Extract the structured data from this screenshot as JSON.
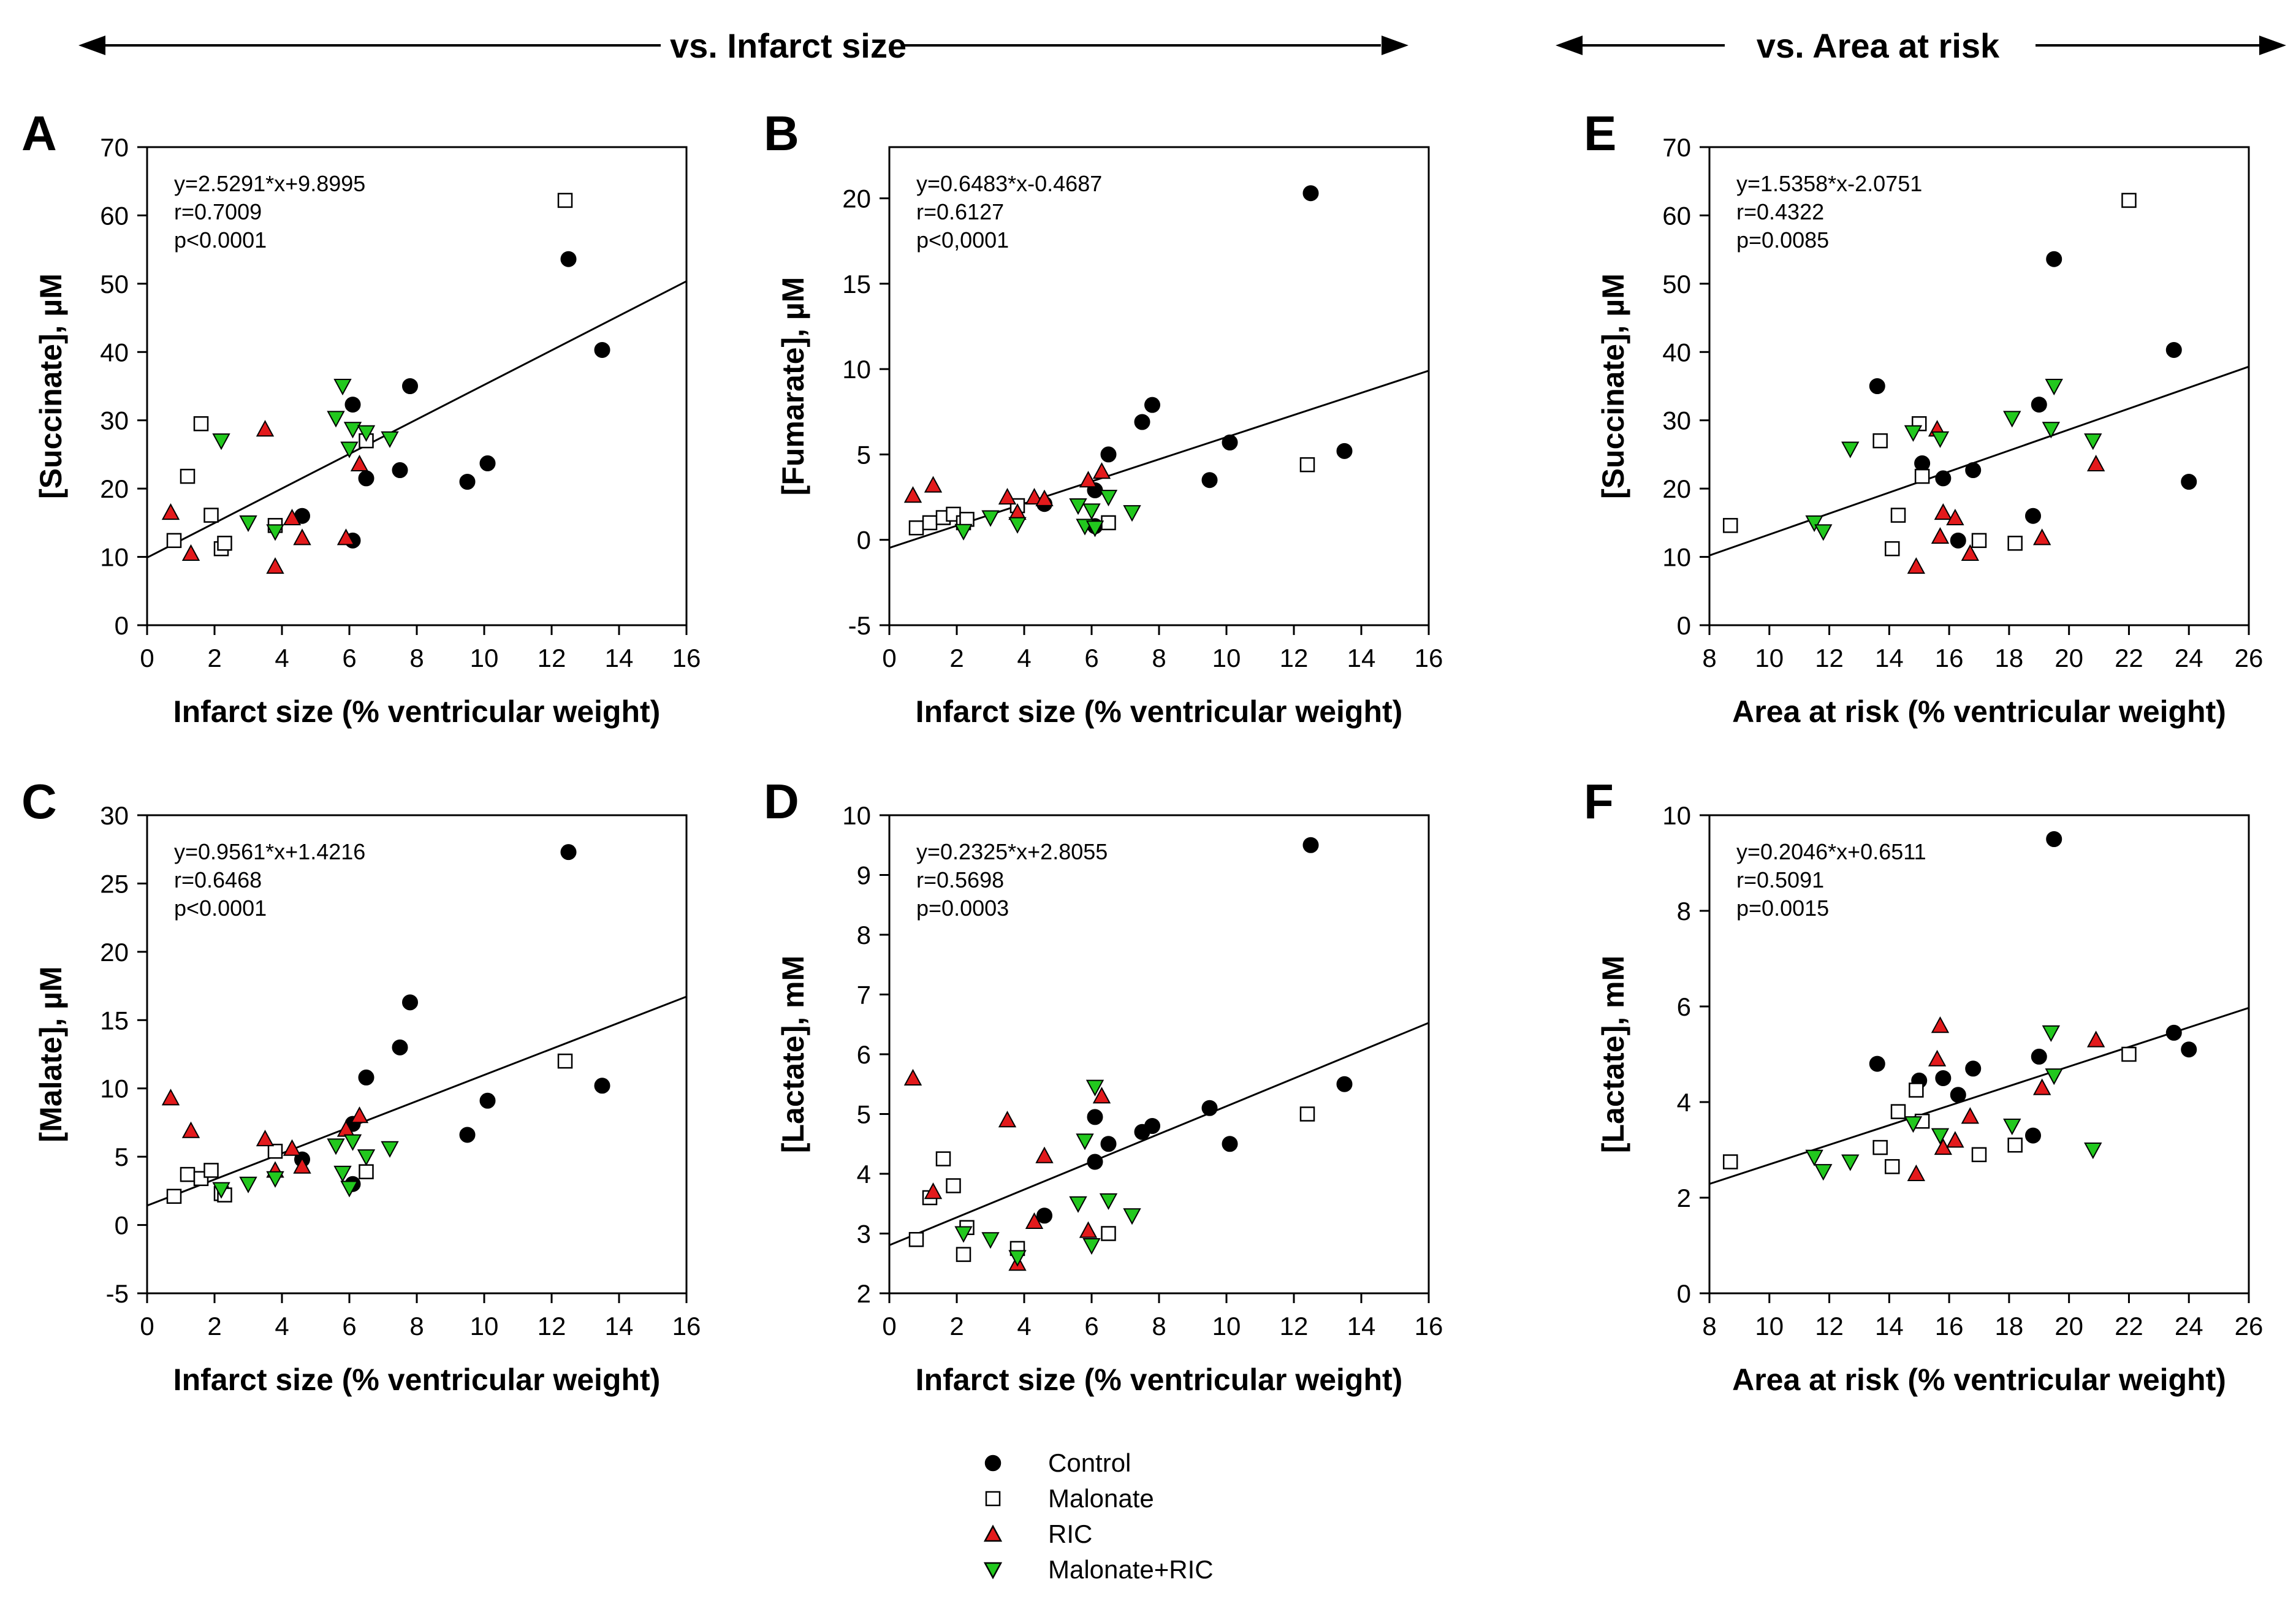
{
  "headers": {
    "left": "vs. Infarct size",
    "right": "vs. Area at risk"
  },
  "legend": [
    {
      "label": "Control",
      "group": "control"
    },
    {
      "label": "Malonate",
      "group": "malonate"
    },
    {
      "label": "RIC",
      "group": "ric"
    },
    {
      "label": "Malonate+RIC",
      "group": "malric"
    }
  ],
  "colors": {
    "control": "#000000",
    "malonate_fill": "#ffffff",
    "ric": "#e31a1c",
    "malric": "#22c81e"
  },
  "chart_data": [
    {
      "id": "A",
      "type": "scatter",
      "panel_letter": "A",
      "ylabel": "[Succinate], µM",
      "xlabel": "Infarct size (% ventricular weight)",
      "xlim": [
        0,
        16
      ],
      "ylim": [
        0,
        70
      ],
      "xticks": [
        0,
        2,
        4,
        6,
        8,
        10,
        12,
        14,
        16
      ],
      "yticks": [
        0,
        10,
        20,
        30,
        40,
        50,
        60,
        70
      ],
      "ytick_labels": [
        "0",
        "10",
        "20",
        "30",
        "40",
        "50",
        "60",
        "70"
      ],
      "regression": {
        "slope": 2.5291,
        "intercept": 9.8995
      },
      "stats": [
        "y=2.5291*x+9.8995",
        "r=0.7009",
        "p<0.0001"
      ],
      "series": {
        "control": [
          [
            4.6,
            16.0
          ],
          [
            6.1,
            32.3
          ],
          [
            6.1,
            12.4
          ],
          [
            6.5,
            21.5
          ],
          [
            7.5,
            22.7
          ],
          [
            7.8,
            35.0
          ],
          [
            9.5,
            21.0
          ],
          [
            10.1,
            23.7
          ],
          [
            12.5,
            53.6
          ],
          [
            13.5,
            40.3
          ]
        ],
        "malonate": [
          [
            0.8,
            12.4
          ],
          [
            1.2,
            21.8
          ],
          [
            1.6,
            29.5
          ],
          [
            1.9,
            16.1
          ],
          [
            2.2,
            11.2
          ],
          [
            2.3,
            12.0
          ],
          [
            3.8,
            14.6
          ],
          [
            6.5,
            27.0
          ],
          [
            12.4,
            62.2
          ]
        ],
        "ric": [
          [
            0.7,
            16.5
          ],
          [
            1.3,
            10.5
          ],
          [
            3.5,
            28.7
          ],
          [
            3.8,
            8.6
          ],
          [
            4.3,
            15.7
          ],
          [
            4.6,
            12.8
          ],
          [
            5.9,
            12.8
          ],
          [
            6.3,
            23.6
          ]
        ],
        "malric": [
          [
            2.2,
            27.0
          ],
          [
            3.0,
            15.0
          ],
          [
            3.8,
            13.7
          ],
          [
            5.6,
            30.3
          ],
          [
            5.8,
            35.0
          ],
          [
            6.0,
            25.8
          ],
          [
            6.1,
            28.7
          ],
          [
            6.5,
            28.2
          ],
          [
            7.2,
            27.3
          ]
        ]
      }
    },
    {
      "id": "B",
      "type": "scatter",
      "panel_letter": "B",
      "ylabel": "[Fumarate], µM",
      "xlabel": "Infarct size (% ventricular weight)",
      "xlim": [
        0,
        16
      ],
      "ylim": [
        -5,
        23
      ],
      "xticks": [
        0,
        2,
        4,
        6,
        8,
        10,
        12,
        14,
        16
      ],
      "yticks": [
        -5,
        0,
        5,
        10,
        15,
        20
      ],
      "ytick_labels": [
        "-5",
        "0",
        "5",
        "10",
        "15",
        "20"
      ],
      "regression": {
        "slope": 0.6483,
        "intercept": -0.4687
      },
      "stats": [
        "y=0.6483*x-0.4687",
        "r=0.6127",
        "p<0,0001"
      ],
      "series": {
        "control": [
          [
            4.6,
            2.1
          ],
          [
            6.1,
            2.9
          ],
          [
            6.1,
            0.8
          ],
          [
            6.5,
            5.0
          ],
          [
            7.5,
            6.9
          ],
          [
            7.8,
            7.9
          ],
          [
            9.5,
            3.5
          ],
          [
            10.1,
            5.7
          ],
          [
            12.5,
            20.3
          ],
          [
            13.5,
            5.2
          ]
        ],
        "malonate": [
          [
            0.8,
            0.7
          ],
          [
            1.2,
            1.0
          ],
          [
            1.6,
            1.3
          ],
          [
            1.9,
            1.5
          ],
          [
            2.2,
            1.0
          ],
          [
            2.3,
            1.2
          ],
          [
            3.8,
            2.0
          ],
          [
            6.5,
            1.0
          ],
          [
            12.4,
            4.4
          ]
        ],
        "ric": [
          [
            0.7,
            2.6
          ],
          [
            1.3,
            3.2
          ],
          [
            3.5,
            2.5
          ],
          [
            3.8,
            1.6
          ],
          [
            4.3,
            2.5
          ],
          [
            4.6,
            2.4
          ],
          [
            5.9,
            3.5
          ],
          [
            6.3,
            4.0
          ]
        ],
        "malric": [
          [
            2.2,
            0.5
          ],
          [
            3.0,
            1.3
          ],
          [
            3.8,
            0.9
          ],
          [
            5.6,
            2.0
          ],
          [
            5.8,
            0.8
          ],
          [
            6.0,
            1.7
          ],
          [
            6.1,
            0.7
          ],
          [
            6.5,
            2.5
          ],
          [
            7.2,
            1.6
          ]
        ]
      }
    },
    {
      "id": "C",
      "type": "scatter",
      "panel_letter": "C",
      "ylabel": "[Malate], µM",
      "xlabel": "Infarct size (% ventricular weight)",
      "xlim": [
        0,
        16
      ],
      "ylim": [
        -5,
        30
      ],
      "xticks": [
        0,
        2,
        4,
        6,
        8,
        10,
        12,
        14,
        16
      ],
      "yticks": [
        -5,
        0,
        5,
        10,
        15,
        20,
        25,
        30
      ],
      "ytick_labels": [
        "-5",
        "0",
        "5",
        "10",
        "15",
        "20",
        "25",
        "30"
      ],
      "regression": {
        "slope": 0.9561,
        "intercept": 1.4216
      },
      "stats": [
        "y=0.9561*x+1.4216",
        "r=0.6468",
        "p<0.0001"
      ],
      "series": {
        "control": [
          [
            4.6,
            4.8
          ],
          [
            6.1,
            7.4
          ],
          [
            6.1,
            3.0
          ],
          [
            6.5,
            10.8
          ],
          [
            7.5,
            13.0
          ],
          [
            7.8,
            16.3
          ],
          [
            9.5,
            6.6
          ],
          [
            10.1,
            9.1
          ],
          [
            12.5,
            27.3
          ],
          [
            13.5,
            10.2
          ]
        ],
        "malonate": [
          [
            0.8,
            2.1
          ],
          [
            1.2,
            3.7
          ],
          [
            1.6,
            3.4
          ],
          [
            1.9,
            4.0
          ],
          [
            2.2,
            2.3
          ],
          [
            2.3,
            2.2
          ],
          [
            3.8,
            5.4
          ],
          [
            6.5,
            3.9
          ],
          [
            12.4,
            12.0
          ]
        ],
        "ric": [
          [
            0.7,
            9.3
          ],
          [
            1.3,
            6.9
          ],
          [
            3.5,
            6.3
          ],
          [
            3.8,
            4.0
          ],
          [
            4.3,
            5.6
          ],
          [
            4.6,
            4.3
          ],
          [
            5.9,
            7.0
          ],
          [
            6.3,
            8.0
          ]
        ],
        "malric": [
          [
            2.2,
            2.6
          ],
          [
            3.0,
            3.0
          ],
          [
            3.8,
            3.4
          ],
          [
            5.6,
            5.8
          ],
          [
            5.8,
            3.8
          ],
          [
            6.0,
            2.7
          ],
          [
            6.1,
            6.1
          ],
          [
            6.5,
            5.0
          ],
          [
            7.2,
            5.6
          ]
        ]
      }
    },
    {
      "id": "D",
      "type": "scatter",
      "panel_letter": "D",
      "ylabel": "[Lactate], mM",
      "xlabel": "Infarct size (% ventricular weight)",
      "xlim": [
        0,
        16
      ],
      "ylim": [
        2,
        10
      ],
      "xticks": [
        0,
        2,
        4,
        6,
        8,
        10,
        12,
        14,
        16
      ],
      "yticks": [
        2,
        3,
        4,
        5,
        6,
        7,
        8,
        9,
        10
      ],
      "ytick_labels": [
        "2",
        "3",
        "4",
        "5",
        "6",
        "7",
        "8",
        "9",
        "10"
      ],
      "regression": {
        "slope": 0.2325,
        "intercept": 2.8055
      },
      "stats": [
        "y=0.2325*x+2.8055",
        "r=0.5698",
        "p=0.0003"
      ],
      "series": {
        "control": [
          [
            4.6,
            3.3
          ],
          [
            6.1,
            4.2
          ],
          [
            6.1,
            4.95
          ],
          [
            6.5,
            4.5
          ],
          [
            7.5,
            4.7
          ],
          [
            7.8,
            4.8
          ],
          [
            9.5,
            5.1
          ],
          [
            10.1,
            4.5
          ],
          [
            12.5,
            9.5
          ],
          [
            13.5,
            5.5
          ]
        ],
        "malonate": [
          [
            0.8,
            2.9
          ],
          [
            1.2,
            3.6
          ],
          [
            1.6,
            4.25
          ],
          [
            1.9,
            3.8
          ],
          [
            2.2,
            2.65
          ],
          [
            2.3,
            3.1
          ],
          [
            3.8,
            2.75
          ],
          [
            6.5,
            3.0
          ],
          [
            12.4,
            5.0
          ]
        ],
        "ric": [
          [
            0.7,
            5.6
          ],
          [
            1.3,
            3.7
          ],
          [
            3.5,
            4.9
          ],
          [
            3.8,
            2.5
          ],
          [
            4.3,
            3.2
          ],
          [
            4.6,
            4.3
          ],
          [
            5.9,
            3.05
          ],
          [
            6.3,
            5.3
          ]
        ],
        "malric": [
          [
            2.2,
            3.0
          ],
          [
            3.0,
            2.9
          ],
          [
            3.8,
            2.6
          ],
          [
            5.6,
            3.5
          ],
          [
            5.8,
            4.55
          ],
          [
            6.0,
            2.8
          ],
          [
            6.1,
            5.45
          ],
          [
            6.5,
            3.55
          ],
          [
            7.2,
            3.3
          ]
        ]
      }
    },
    {
      "id": "E",
      "type": "scatter",
      "panel_letter": "E",
      "ylabel": "[Succinate], µM",
      "xlabel": "Area at risk (% ventricular weight)",
      "xlim": [
        8,
        26
      ],
      "ylim": [
        0,
        70
      ],
      "xticks": [
        8,
        10,
        12,
        14,
        16,
        18,
        20,
        22,
        24,
        26
      ],
      "yticks": [
        0,
        10,
        20,
        30,
        40,
        50,
        60,
        70
      ],
      "ytick_labels": [
        "0",
        "10",
        "20",
        "30",
        "40",
        "50",
        "60",
        "70"
      ],
      "regression": {
        "slope": 1.5358,
        "intercept": -2.0751
      },
      "stats": [
        "y=1.5358*x-2.0751",
        "r=0.4322",
        "p=0.0085"
      ],
      "series": {
        "control": [
          [
            13.6,
            35.0
          ],
          [
            15.1,
            23.7
          ],
          [
            15.8,
            21.5
          ],
          [
            16.3,
            12.4
          ],
          [
            16.8,
            22.7
          ],
          [
            18.8,
            16.0
          ],
          [
            19.0,
            32.3
          ],
          [
            19.5,
            53.6
          ],
          [
            23.5,
            40.3
          ],
          [
            24.0,
            21.0
          ]
        ],
        "malonate": [
          [
            8.7,
            14.6
          ],
          [
            13.7,
            27.0
          ],
          [
            14.1,
            11.2
          ],
          [
            14.3,
            16.1
          ],
          [
            15.0,
            29.5
          ],
          [
            15.1,
            21.8
          ],
          [
            17.0,
            12.4
          ],
          [
            18.2,
            12.0
          ],
          [
            22.0,
            62.2
          ]
        ],
        "ric": [
          [
            14.9,
            8.6
          ],
          [
            15.6,
            28.7
          ],
          [
            15.7,
            13.0
          ],
          [
            15.8,
            16.5
          ],
          [
            16.2,
            15.7
          ],
          [
            16.7,
            10.5
          ],
          [
            19.1,
            12.8
          ],
          [
            20.9,
            23.6
          ]
        ],
        "malric": [
          [
            11.5,
            15.0
          ],
          [
            11.8,
            13.7
          ],
          [
            12.7,
            25.8
          ],
          [
            14.8,
            28.2
          ],
          [
            15.7,
            27.3
          ],
          [
            18.1,
            30.3
          ],
          [
            19.4,
            28.7
          ],
          [
            19.5,
            35.0
          ],
          [
            20.8,
            27.0
          ]
        ]
      }
    },
    {
      "id": "F",
      "type": "scatter",
      "panel_letter": "F",
      "ylabel": "[Lactate], mM",
      "xlabel": "Area at risk (% ventricular weight)",
      "xlim": [
        8,
        26
      ],
      "ylim": [
        0,
        10
      ],
      "xticks": [
        8,
        10,
        12,
        14,
        16,
        18,
        20,
        22,
        24,
        26
      ],
      "yticks": [
        0,
        2,
        4,
        6,
        8,
        10
      ],
      "ytick_labels": [
        "0",
        "2",
        "4",
        "6",
        "8",
        "10"
      ],
      "regression": {
        "slope": 0.2046,
        "intercept": 0.6511
      },
      "stats": [
        "y=0.2046*x+0.6511",
        "r=0.5091",
        "p=0.0015"
      ],
      "series": {
        "control": [
          [
            13.6,
            4.8
          ],
          [
            15.0,
            4.45
          ],
          [
            15.8,
            4.5
          ],
          [
            16.3,
            4.15
          ],
          [
            16.8,
            4.7
          ],
          [
            18.8,
            3.3
          ],
          [
            19.0,
            4.95
          ],
          [
            19.5,
            9.5
          ],
          [
            23.5,
            5.45
          ],
          [
            24.0,
            5.1
          ]
        ],
        "malonate": [
          [
            8.7,
            2.75
          ],
          [
            13.7,
            3.05
          ],
          [
            14.1,
            2.65
          ],
          [
            14.3,
            3.8
          ],
          [
            14.9,
            4.25
          ],
          [
            15.1,
            3.6
          ],
          [
            17.0,
            2.9
          ],
          [
            18.2,
            3.1
          ],
          [
            22.0,
            5.0
          ]
        ],
        "ric": [
          [
            14.9,
            2.5
          ],
          [
            15.6,
            4.9
          ],
          [
            15.7,
            5.6
          ],
          [
            15.8,
            3.05
          ],
          [
            16.2,
            3.2
          ],
          [
            16.7,
            3.7
          ],
          [
            19.1,
            4.3
          ],
          [
            20.9,
            5.3
          ]
        ],
        "malric": [
          [
            11.5,
            2.85
          ],
          [
            11.8,
            2.55
          ],
          [
            12.7,
            2.75
          ],
          [
            14.8,
            3.55
          ],
          [
            15.7,
            3.3
          ],
          [
            18.1,
            3.5
          ],
          [
            19.4,
            5.45
          ],
          [
            19.5,
            4.55
          ],
          [
            20.8,
            3.0
          ]
        ]
      }
    }
  ]
}
